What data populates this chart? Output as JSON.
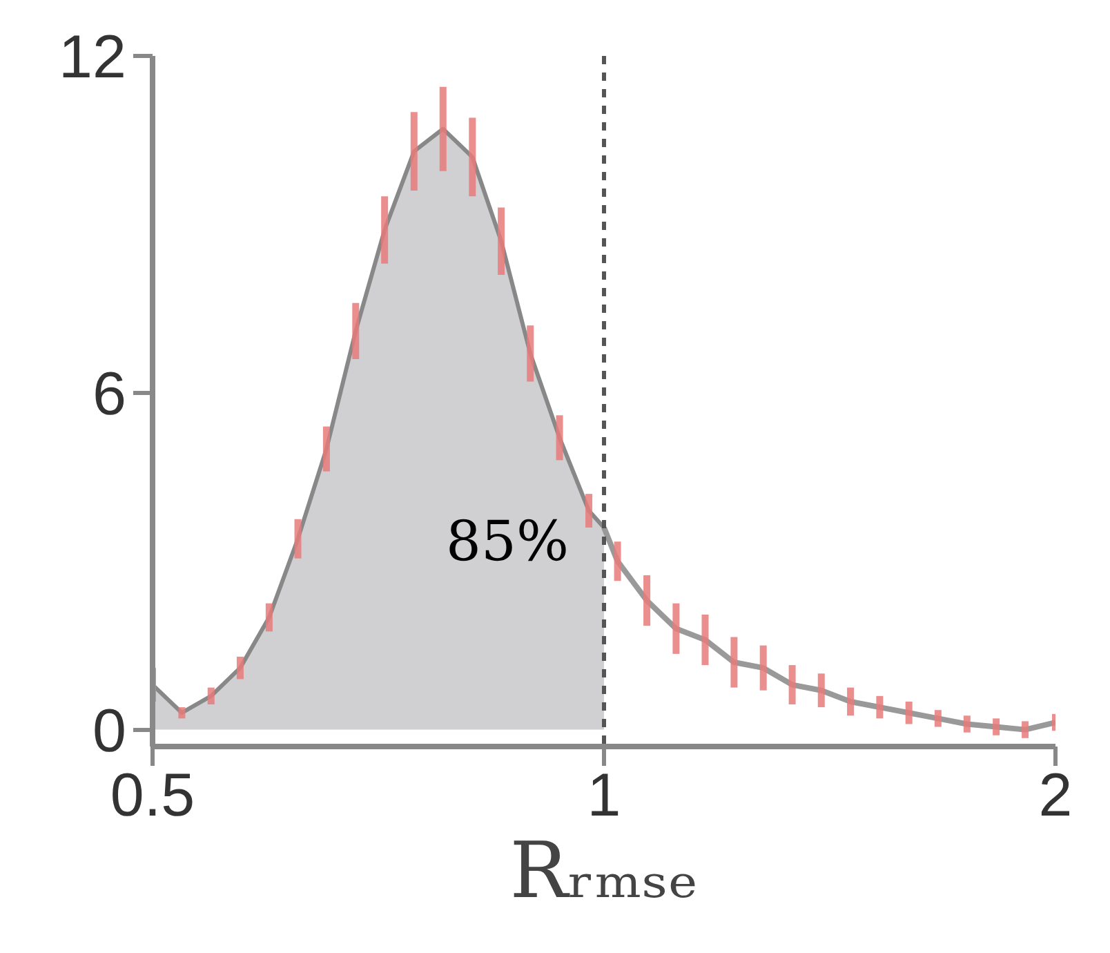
{
  "chart_data": {
    "type": "line",
    "xlabel": "Rᵣₘₛₑ",
    "log": "x",
    "xlim": [
      0.5,
      2
    ],
    "xticks": [
      0.5,
      1,
      2
    ],
    "ylim": [
      -0.3,
      12
    ],
    "yticks": [
      0,
      6,
      12
    ],
    "grid": false,
    "marker": "none",
    "line_style": "solid",
    "series": [
      {
        "type": "area",
        "color": "#d0d0d3",
        "x": [
          0.5,
          0.523,
          0.547,
          0.572,
          0.598,
          0.625,
          0.653,
          0.683,
          0.714,
          0.747,
          0.781,
          0.817,
          0.854,
          0.893,
          0.934,
          0.977,
          1
        ],
        "values": [
          0.8,
          0.3,
          0.6,
          1.1,
          2.0,
          3.4,
          5.0,
          7.1,
          8.9,
          10.3,
          10.7,
          10.2,
          8.7,
          6.7,
          5.2,
          3.9,
          3.6
        ],
        "errors": [
          0.3,
          0.1,
          0.15,
          0.2,
          0.25,
          0.35,
          0.4,
          0.5,
          0.6,
          0.7,
          0.75,
          0.7,
          0.6,
          0.5,
          0.4,
          0.3,
          null
        ]
      },
      {
        "color": "#999999",
        "x": [
          1,
          1.021,
          1.068,
          1.117,
          1.168,
          1.221,
          1.277,
          1.335,
          1.396,
          1.46,
          1.527,
          1.597,
          1.67,
          1.746,
          1.826,
          1.909,
          2
        ],
        "values": [
          3.6,
          3.0,
          2.3,
          1.8,
          1.6,
          1.2,
          1.1,
          0.8,
          0.7,
          0.5,
          0.4,
          0.3,
          0.2,
          0.1,
          0.05,
          0.0,
          0.13
        ],
        "errors": [
          null,
          0.35,
          0.45,
          0.45,
          0.45,
          0.45,
          0.4,
          0.35,
          0.3,
          0.25,
          0.2,
          0.2,
          0.15,
          0.15,
          0.15,
          0.15,
          0.15
        ]
      }
    ],
    "ref_lines": [
      {
        "axis": "x",
        "value": 1,
        "color": "#555555",
        "line_style": "dashed"
      }
    ],
    "annotations": [
      "85%"
    ]
  }
}
